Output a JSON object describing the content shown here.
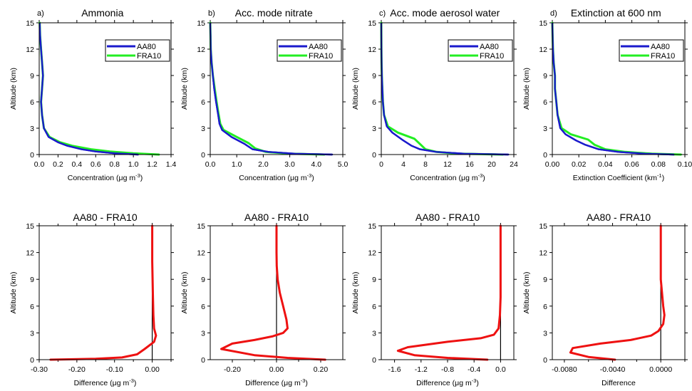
{
  "figure": {
    "description_free": true
  },
  "chart_data": [
    {
      "type": "line",
      "panel_label": "a)",
      "title": "Ammonia",
      "xlabel": "Concentration",
      "xunit_base": " (μg m",
      "xunit_exp": "-3",
      "xunit_close": ")",
      "ylabel": "Altitude (km)",
      "xlim": [
        0,
        1.4
      ],
      "ylim": [
        0,
        15
      ],
      "xticks": [
        0,
        0.2,
        0.4,
        0.6,
        0.8,
        1.0,
        1.2,
        1.4
      ],
      "xtick_labels": [
        "0.0",
        "0.2",
        "0.4",
        "0.6",
        "0.8",
        "1.0",
        "1.2",
        "1.4"
      ],
      "yticks": [
        0,
        3,
        6,
        9,
        12,
        15
      ],
      "legend": "top-right",
      "series": [
        {
          "name": "AA80",
          "color": "#1a1acc",
          "points": [
            [
              1.05,
              0
            ],
            [
              0.8,
              0.15
            ],
            [
              0.6,
              0.35
            ],
            [
              0.45,
              0.6
            ],
            [
              0.3,
              1.0
            ],
            [
              0.2,
              1.4
            ],
            [
              0.1,
              2.0
            ],
            [
              0.05,
              3.0
            ],
            [
              0.03,
              4.5
            ],
            [
              0.02,
              6
            ],
            [
              0.03,
              7.5
            ],
            [
              0.04,
              9
            ],
            [
              0.03,
              10.5
            ],
            [
              0.02,
              12
            ],
            [
              0.01,
              13.5
            ],
            [
              0.005,
              15
            ]
          ]
        },
        {
          "name": "FRA10",
          "color": "#22ee22",
          "points": [
            [
              1.27,
              0
            ],
            [
              1.0,
              0.15
            ],
            [
              0.75,
              0.35
            ],
            [
              0.55,
              0.6
            ],
            [
              0.35,
              1.0
            ],
            [
              0.22,
              1.4
            ],
            [
              0.11,
              2.0
            ],
            [
              0.05,
              3.0
            ],
            [
              0.03,
              4.5
            ],
            [
              0.02,
              6
            ],
            [
              0.03,
              7.5
            ],
            [
              0.04,
              9
            ],
            [
              0.03,
              10.5
            ],
            [
              0.02,
              12
            ],
            [
              0.01,
              13.5
            ],
            [
              0.005,
              15
            ]
          ]
        }
      ]
    },
    {
      "type": "line",
      "panel_label": "b)",
      "title": "Acc. mode nitrate",
      "xlabel": "Concentration",
      "xunit_base": " (μg m",
      "xunit_exp": "-3",
      "xunit_close": ")",
      "ylabel": "Altitude (km)",
      "xlim": [
        0,
        5.0
      ],
      "ylim": [
        0,
        15
      ],
      "xticks": [
        0,
        1,
        2,
        3,
        4,
        5
      ],
      "xtick_labels": [
        "0.0",
        "1.0",
        "2.0",
        "3.0",
        "4.0",
        "5.0"
      ],
      "yticks": [
        0,
        3,
        6,
        9,
        12,
        15
      ],
      "legend": "top-right",
      "series": [
        {
          "name": "AA80",
          "color": "#1a1acc",
          "points": [
            [
              4.6,
              0
            ],
            [
              3.2,
              0.1
            ],
            [
              2.2,
              0.3
            ],
            [
              1.6,
              0.6
            ],
            [
              1.3,
              1.2
            ],
            [
              0.8,
              2.0
            ],
            [
              0.45,
              2.8
            ],
            [
              0.35,
              3.5
            ],
            [
              0.3,
              4.5
            ],
            [
              0.22,
              6
            ],
            [
              0.15,
              7.5
            ],
            [
              0.1,
              9
            ],
            [
              0.05,
              10.5
            ],
            [
              0.02,
              12
            ],
            [
              0.01,
              13.5
            ],
            [
              0.0,
              15
            ]
          ]
        },
        {
          "name": "FRA10",
          "color": "#22ee22",
          "points": [
            [
              4.3,
              0
            ],
            [
              3.0,
              0.1
            ],
            [
              2.1,
              0.3
            ],
            [
              1.7,
              0.7
            ],
            [
              1.45,
              1.3
            ],
            [
              1.0,
              2.0
            ],
            [
              0.5,
              2.8
            ],
            [
              0.38,
              3.5
            ],
            [
              0.32,
              4.5
            ],
            [
              0.24,
              6
            ],
            [
              0.17,
              7.5
            ],
            [
              0.1,
              9
            ],
            [
              0.05,
              10.5
            ],
            [
              0.02,
              12
            ],
            [
              0.01,
              13.5
            ],
            [
              0.0,
              15
            ]
          ]
        }
      ]
    },
    {
      "type": "line",
      "panel_label": "c)",
      "title": "Acc. mode aerosol water",
      "xlabel": "Concentration",
      "xunit_base": " (μg m",
      "xunit_exp": "-3",
      "xunit_close": ")",
      "ylabel": "Altitude (km)",
      "xlim": [
        0,
        24
      ],
      "ylim": [
        0,
        15
      ],
      "xticks": [
        0,
        4,
        8,
        12,
        16,
        20,
        24
      ],
      "xtick_labels": [
        "0",
        "4",
        "8",
        "12",
        "16",
        "20",
        "24"
      ],
      "yticks": [
        0,
        3,
        6,
        9,
        12,
        15
      ],
      "legend": "top-right",
      "series": [
        {
          "name": "AA80",
          "color": "#1a1acc",
          "points": [
            [
              23,
              0
            ],
            [
              15,
              0.1
            ],
            [
              10,
              0.3
            ],
            [
              7,
              0.6
            ],
            [
              5.5,
              1.0
            ],
            [
              4,
              1.6
            ],
            [
              2,
              2.5
            ],
            [
              1,
              3.2
            ],
            [
              0.5,
              4.5
            ],
            [
              0.3,
              6
            ],
            [
              0.2,
              7.5
            ],
            [
              0.1,
              9
            ],
            [
              0.05,
              10.5
            ],
            [
              0.02,
              12
            ],
            [
              0.01,
              13.5
            ],
            [
              0.0,
              15
            ]
          ]
        },
        {
          "name": "FRA10",
          "color": "#22ee22",
          "points": [
            [
              22,
              0
            ],
            [
              14,
              0.1
            ],
            [
              10,
              0.3
            ],
            [
              8,
              0.6
            ],
            [
              7,
              1.2
            ],
            [
              6,
              1.8
            ],
            [
              3,
              2.5
            ],
            [
              1.2,
              3.2
            ],
            [
              0.5,
              4.5
            ],
            [
              0.3,
              6
            ],
            [
              0.2,
              7.5
            ],
            [
              0.1,
              9
            ],
            [
              0.05,
              10.5
            ],
            [
              0.02,
              12
            ],
            [
              0.01,
              13.5
            ],
            [
              0.0,
              15
            ]
          ]
        }
      ]
    },
    {
      "type": "line",
      "panel_label": "d)",
      "title": "Extinction at 600 nm",
      "xlabel": "Extinction Coefficient",
      "xunit_base": " (km",
      "xunit_exp": "-1",
      "xunit_close": ")",
      "ylabel": "Altitude (km)",
      "xlim": [
        0,
        0.1
      ],
      "ylim": [
        0,
        15
      ],
      "xticks": [
        0,
        0.02,
        0.04,
        0.06,
        0.08,
        0.1
      ],
      "xtick_labels": [
        "0.00",
        "0.02",
        "0.04",
        "0.06",
        "0.08",
        "0.10"
      ],
      "yticks": [
        0,
        3,
        6,
        9,
        12,
        15
      ],
      "legend": "top-right",
      "series": [
        {
          "name": "AA80",
          "color": "#1a1acc",
          "points": [
            [
              0.092,
              0
            ],
            [
              0.07,
              0.1
            ],
            [
              0.05,
              0.3
            ],
            [
              0.035,
              0.6
            ],
            [
              0.025,
              1.1
            ],
            [
              0.018,
              1.6
            ],
            [
              0.01,
              2.3
            ],
            [
              0.006,
              3.0
            ],
            [
              0.004,
              4.5
            ],
            [
              0.003,
              6
            ],
            [
              0.002,
              7.5
            ],
            [
              0.002,
              9
            ],
            [
              0.001,
              10.5
            ],
            [
              0.0005,
              12
            ],
            [
              0.0002,
              13.5
            ],
            [
              0.0,
              15
            ]
          ]
        },
        {
          "name": "FRA10",
          "color": "#22ee22",
          "points": [
            [
              0.097,
              0
            ],
            [
              0.075,
              0.1
            ],
            [
              0.055,
              0.3
            ],
            [
              0.04,
              0.6
            ],
            [
              0.032,
              1.1
            ],
            [
              0.027,
              1.7
            ],
            [
              0.014,
              2.3
            ],
            [
              0.007,
              3.0
            ],
            [
              0.004,
              4.5
            ],
            [
              0.003,
              6
            ],
            [
              0.002,
              7.5
            ],
            [
              0.002,
              9
            ],
            [
              0.001,
              10.5
            ],
            [
              0.0005,
              12
            ],
            [
              0.0002,
              13.5
            ],
            [
              0.0,
              15
            ]
          ]
        }
      ]
    },
    {
      "type": "line",
      "title": "AA80 - FRA10",
      "xlabel": "Difference",
      "xunit_base": " (μg m",
      "xunit_exp": "-3",
      "xunit_close": ")",
      "ylabel": "Altitude (km)",
      "xlim": [
        -0.3,
        0.05
      ],
      "ylim": [
        0,
        15
      ],
      "xticks": [
        -0.3,
        -0.2,
        -0.1,
        0.0
      ],
      "xtick_labels": [
        "-0.30",
        "-0.20",
        "-0.10",
        "0.00"
      ],
      "minor_xticks": [
        -0.25,
        -0.15,
        -0.05,
        0.05
      ],
      "yticks": [
        0,
        3,
        6,
        9,
        12,
        15
      ],
      "zero_line": true,
      "series": [
        {
          "name": "",
          "color": "#ee1111",
          "points": [
            [
              -0.27,
              0
            ],
            [
              -0.15,
              0.1
            ],
            [
              -0.08,
              0.25
            ],
            [
              -0.04,
              0.6
            ],
            [
              -0.02,
              1.2
            ],
            [
              0.005,
              2.0
            ],
            [
              0.01,
              2.7
            ],
            [
              0.005,
              3.5
            ],
            [
              0.003,
              5
            ],
            [
              0.002,
              7
            ],
            [
              0.001,
              9
            ],
            [
              0.0,
              11
            ],
            [
              0.0,
              13
            ],
            [
              0.0,
              15
            ]
          ]
        }
      ]
    },
    {
      "type": "line",
      "title": "AA80 - FRA10",
      "xlabel": "Difference",
      "xunit_base": " (μg m",
      "xunit_exp": "-3",
      "xunit_close": ")",
      "ylabel": "Altitude (km)",
      "xlim": [
        -0.3,
        0.3
      ],
      "ylim": [
        0,
        15
      ],
      "xticks": [
        -0.2,
        0.0,
        0.2
      ],
      "xtick_labels": [
        "-0.20",
        "0.00",
        "0.20"
      ],
      "minor_xticks": [
        -0.1,
        0.1
      ],
      "yticks": [
        0,
        3,
        6,
        9,
        12,
        15
      ],
      "zero_line": true,
      "series": [
        {
          "name": "",
          "color": "#ee1111",
          "points": [
            [
              0.22,
              0
            ],
            [
              0.05,
              0.2
            ],
            [
              -0.1,
              0.5
            ],
            [
              -0.25,
              1.2
            ],
            [
              -0.2,
              1.8
            ],
            [
              -0.1,
              2.2
            ],
            [
              -0.02,
              2.6
            ],
            [
              0.03,
              3.0
            ],
            [
              0.05,
              3.5
            ],
            [
              0.045,
              4.5
            ],
            [
              0.03,
              6
            ],
            [
              0.015,
              7.5
            ],
            [
              0.005,
              9
            ],
            [
              0.001,
              10.5
            ],
            [
              0.0,
              12
            ],
            [
              0.0,
              15
            ]
          ]
        }
      ]
    },
    {
      "type": "line",
      "title": "AA80 - FRA10",
      "xlabel": "Difference",
      "xunit_base": " (μg m",
      "xunit_exp": "-3",
      "xunit_close": ")",
      "ylabel": "Altitude (km)",
      "xlim": [
        -1.8,
        0.2
      ],
      "ylim": [
        0,
        15
      ],
      "xticks": [
        -1.6,
        -1.2,
        -0.8,
        -0.4,
        0.0
      ],
      "xtick_labels": [
        "-1.6",
        "-1.2",
        "-0.8",
        "-0.4",
        "0.0"
      ],
      "yticks": [
        0,
        3,
        6,
        9,
        12,
        15
      ],
      "zero_line": true,
      "series": [
        {
          "name": "",
          "color": "#ee1111",
          "points": [
            [
              -0.2,
              0
            ],
            [
              -0.8,
              0.2
            ],
            [
              -1.3,
              0.5
            ],
            [
              -1.55,
              1.0
            ],
            [
              -1.4,
              1.4
            ],
            [
              -0.8,
              2.0
            ],
            [
              -0.3,
              2.4
            ],
            [
              -0.1,
              2.8
            ],
            [
              -0.03,
              3.5
            ],
            [
              -0.01,
              5
            ],
            [
              0.0,
              7
            ],
            [
              0.0,
              9
            ],
            [
              0.0,
              11
            ],
            [
              0.0,
              13
            ],
            [
              0.0,
              15
            ]
          ]
        }
      ]
    },
    {
      "type": "line",
      "title": "AA80 - FRA10",
      "xlabel": "Difference",
      "ylabel": "Altitude (km)",
      "xlim": [
        -0.009,
        0.002
      ],
      "ylim": [
        0,
        15
      ],
      "xticks": [
        -0.008,
        -0.004,
        0.0
      ],
      "xtick_labels": [
        "-0.0080",
        "-0.0040",
        "0.0000"
      ],
      "minor_xticks": [
        -0.006,
        -0.002,
        0.002
      ],
      "yticks": [
        0,
        3,
        6,
        9,
        12,
        15
      ],
      "zero_line": true,
      "series": [
        {
          "name": "",
          "color": "#ee1111",
          "points": [
            [
              -0.0038,
              0
            ],
            [
              -0.006,
              0.3
            ],
            [
              -0.0075,
              0.8
            ],
            [
              -0.0073,
              1.3
            ],
            [
              -0.005,
              1.8
            ],
            [
              -0.0025,
              2.2
            ],
            [
              -0.0008,
              2.7
            ],
            [
              -0.0002,
              3.2
            ],
            [
              0.0002,
              4
            ],
            [
              0.0003,
              5
            ],
            [
              0.0002,
              6
            ],
            [
              0.0001,
              7.5
            ],
            [
              0.0,
              9
            ],
            [
              0.0,
              11
            ],
            [
              0.0,
              13
            ],
            [
              0.0,
              15
            ]
          ]
        }
      ]
    }
  ]
}
